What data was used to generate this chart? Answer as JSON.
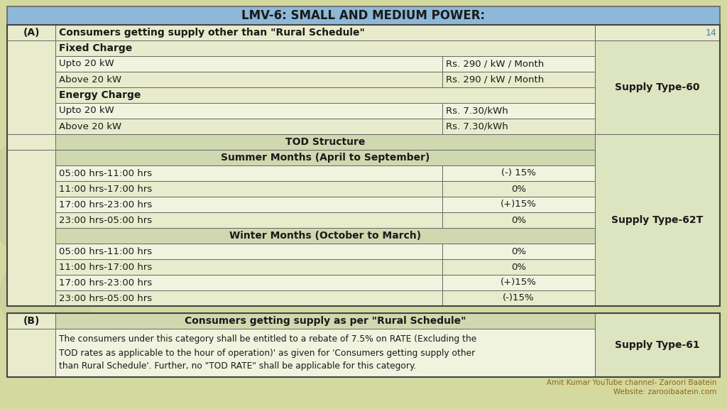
{
  "title": "LMV-6: SMALL AND MEDIUM POWER:",
  "title_bg": "#8db8d8",
  "bg_color": "#d4d9a0",
  "cell_bg_light": "#e8eccc",
  "cell_bg_lighter": "#f0f3de",
  "header_bg": "#d0d8b0",
  "supply_col_bg": "#dde4c0",
  "border_color": "#666666",
  "page_num": "14",
  "page_num_color": "#4a7ab5",
  "section_a_label": "(A)",
  "section_a_title": "Consumers getting supply other than \"Rural Schedule\"",
  "supply_type_60": "Supply Type-60",
  "supply_type_62T": "Supply Type-62T",
  "supply_type_61": "Supply Type-61",
  "fixed_charge_label": "Fixed Charge",
  "energy_charge_label": "Energy Charge",
  "tod_structure_label": "TOD Structure",
  "summer_label": "Summer Months (April to September)",
  "winter_label": "Winter Months (October to March)",
  "section_b_label": "(B)",
  "section_b_title": "Consumers getting supply as per \"Rural Schedule\"",
  "section_b_text_line1": "The consumers under this category shall be entitled to a rebate of 7.5% on RATE (Excluding the",
  "section_b_text_line2": "TOD rates as applicable to the hour of operation)' as given for 'Consumers getting supply other",
  "section_b_text_line3": "than Rural Schedule'. Further, no \"TOD RATE\" shall be applicable for this category.",
  "footer1": "Amit Kumar YouTube channel- Zaroori Baatein",
  "footer2": "Website: zarooibaatein.com",
  "footer_color": "#8b6914",
  "summer_rows": [
    [
      "05:00 hrs-11:00 hrs",
      "(-) 15%"
    ],
    [
      "11:00 hrs-17:00 hrs",
      "0%"
    ],
    [
      "17:00 hrs-23:00 hrs",
      "(+)15%"
    ],
    [
      "23:00 hrs-05:00 hrs",
      "0%"
    ]
  ],
  "winter_rows": [
    [
      "05:00 hrs-11:00 hrs",
      "0%"
    ],
    [
      "11:00 hrs-17:00 hrs",
      "0%"
    ],
    [
      "17:00 hrs-23:00 hrs",
      "(+)15%"
    ],
    [
      "23:00 hrs-05:00 hrs",
      "(-)15%"
    ]
  ]
}
